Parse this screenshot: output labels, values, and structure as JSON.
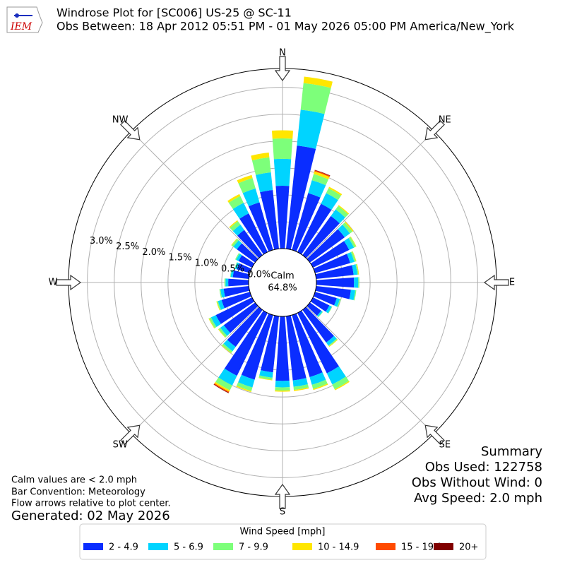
{
  "chart_data": {
    "type": "windrose",
    "title": "Windrose Plot for [SC006] US-25 @ SC-11",
    "subtitle": "Obs Between: 18 Apr 2012 05:51 PM - 01 May 2026 05:00 PM America/New_York",
    "logo_text": "IEM",
    "compass": [
      "N",
      "NE",
      "E",
      "SE",
      "S",
      "SW",
      "W",
      "NW"
    ],
    "calm_label": "Calm",
    "calm": "64.8%",
    "rlim": [
      0,
      3.35
    ],
    "rticks": [
      {
        "value": 0,
        "label": "0.0%"
      },
      {
        "value": 0.5,
        "label": "0.5%"
      },
      {
        "value": 1.0,
        "label": "1.0%"
      },
      {
        "value": 1.5,
        "label": "1.5%"
      },
      {
        "value": 2.0,
        "label": "2.0%"
      },
      {
        "value": 2.5,
        "label": "2.5%"
      },
      {
        "value": 3.0,
        "label": "3.0%"
      }
    ],
    "grid": true,
    "legend_title": "Wind Speed [mph]",
    "series": [
      {
        "name": "2 - 4.9",
        "color": "#0a2dff",
        "values": [
          1.17,
          1.93,
          1.1,
          1.0,
          0.9,
          0.8,
          0.75,
          0.68,
          0.7,
          0.7,
          0.65,
          0.42,
          0.34,
          0.26,
          0.75,
          1.25,
          1.2,
          1.2,
          1.2,
          1.05,
          1.25,
          1.3,
          0.85,
          0.72,
          0.75,
          0.55,
          0.47,
          0.38,
          0.3,
          0.25,
          0.28,
          0.42,
          0.58,
          0.8,
          0.92,
          1.1
        ]
      },
      {
        "name": "5 - 6.9",
        "color": "#00d4ff",
        "values": [
          0.5,
          0.67,
          0.25,
          0.22,
          0.15,
          0.12,
          0.1,
          0.08,
          0.07,
          0.08,
          0.08,
          0.06,
          0.05,
          0.03,
          0.07,
          0.23,
          0.15,
          0.12,
          0.12,
          0.1,
          0.15,
          0.2,
          0.1,
          0.08,
          0.1,
          0.07,
          0.06,
          0.05,
          0.04,
          0.04,
          0.05,
          0.08,
          0.12,
          0.22,
          0.27,
          0.33
        ]
      },
      {
        "name": "7 - 9.9",
        "color": "#7dff7a",
        "values": [
          0.38,
          0.5,
          0.12,
          0.1,
          0.08,
          0.06,
          0.04,
          0.03,
          0.02,
          0.02,
          0.02,
          0.02,
          0.01,
          0.01,
          0.02,
          0.1,
          0.08,
          0.06,
          0.06,
          0.04,
          0.07,
          0.1,
          0.04,
          0.04,
          0.04,
          0.02,
          0.02,
          0.02,
          0.01,
          0.01,
          0.02,
          0.04,
          0.08,
          0.14,
          0.2,
          0.28
        ]
      },
      {
        "name": "10 - 14.9",
        "color": "#ffe600",
        "values": [
          0.15,
          0.12,
          0.05,
          0.03,
          0.02,
          0.02,
          0.01,
          0.01,
          0.01,
          0,
          0,
          0,
          0,
          0,
          0.01,
          0.02,
          0.02,
          0.02,
          0.02,
          0.01,
          0.02,
          0.03,
          0.01,
          0.01,
          0.01,
          0.01,
          0,
          0,
          0,
          0,
          0,
          0.01,
          0.02,
          0.04,
          0.06,
          0.09
        ]
      },
      {
        "name": "15 - 19.9",
        "color": "#ff4a00",
        "values": [
          0,
          0,
          0.02,
          0,
          0,
          0,
          0,
          0,
          0,
          0,
          0,
          0,
          0,
          0,
          0,
          0,
          0,
          0,
          0,
          0,
          0,
          0.02,
          0,
          0,
          0,
          0,
          0,
          0,
          0,
          0,
          0,
          0,
          0,
          0,
          0,
          0
        ]
      },
      {
        "name": "20+",
        "color": "#800000",
        "values": [
          0,
          0,
          0.01,
          0,
          0,
          0,
          0,
          0,
          0,
          0,
          0,
          0,
          0,
          0,
          0,
          0,
          0,
          0,
          0,
          0,
          0,
          0.01,
          0,
          0,
          0,
          0,
          0,
          0,
          0,
          0,
          0,
          0,
          0,
          0,
          0,
          0
        ]
      }
    ],
    "summary": [
      "Summary",
      "Obs Used: 122758",
      "Obs Without Wind: 0",
      "Avg Speed: 2.0 mph"
    ],
    "notes": [
      "Calm values are < 2.0 mph",
      "Bar Convention: Meteorology",
      "Flow arrows relative to plot center."
    ],
    "generated": "Generated: 02 May 2026"
  }
}
